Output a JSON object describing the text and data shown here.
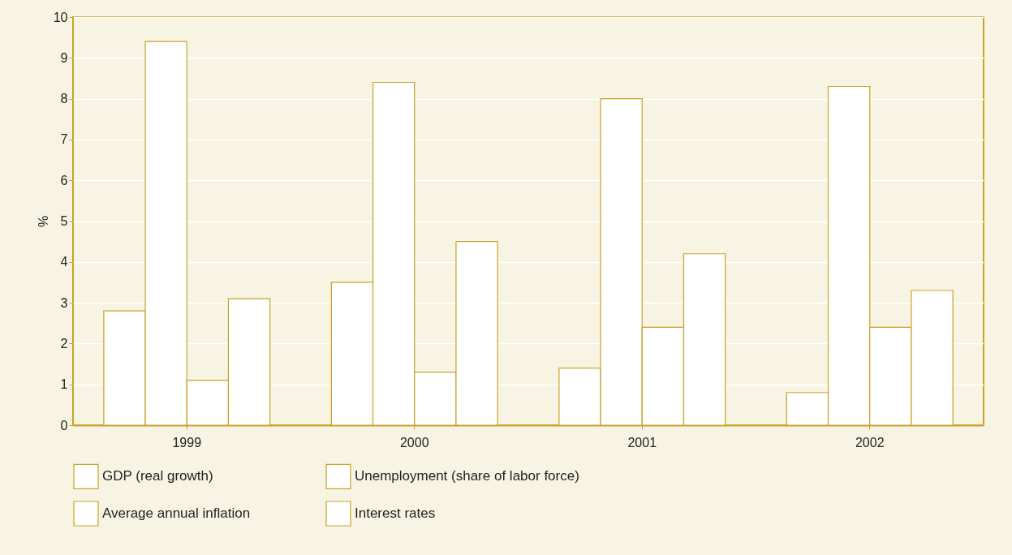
{
  "chart_data": {
    "type": "bar",
    "ylabel": "%",
    "categories": [
      "1999",
      "2000",
      "2001",
      "2002"
    ],
    "series": [
      {
        "name": "GDP (real growth)",
        "color": "#ffffff",
        "values": [
          2.8,
          3.5,
          1.4,
          0.8
        ]
      },
      {
        "name": "Unemployment (share of labor force)",
        "color": "#ffffff",
        "values": [
          9.4,
          8.4,
          8.0,
          8.3
        ]
      },
      {
        "name": "Average annual inflation",
        "color": "#ffffff",
        "values": [
          1.1,
          1.3,
          2.4,
          2.4
        ]
      },
      {
        "name": "Interest rates",
        "color": "#ffffff",
        "values": [
          3.1,
          4.5,
          4.2,
          3.3
        ]
      }
    ],
    "ylim": [
      0,
      10
    ],
    "yticks": [
      0,
      1,
      2,
      3,
      4,
      5,
      6,
      7,
      8,
      9,
      10
    ],
    "grid": true,
    "legend": "bottom"
  }
}
